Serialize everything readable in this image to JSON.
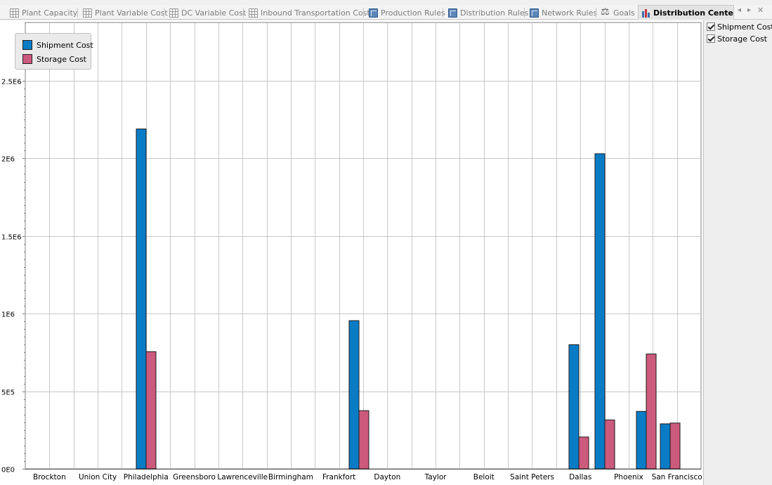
{
  "tabs": [
    {
      "label": "Plant Capacity",
      "icon": "table-icon"
    },
    {
      "label": "Plant Variable Cost",
      "icon": "table-icon"
    },
    {
      "label": "DC Variable Cost",
      "icon": "table-icon"
    },
    {
      "label": "Inbound Transportation Cost",
      "icon": "table-icon"
    },
    {
      "label": "Production Rules",
      "icon": "rules-book-icon"
    },
    {
      "label": "Distribution Rules",
      "icon": "rules-book-icon"
    },
    {
      "label": "Network Rules",
      "icon": "rules-book-icon"
    },
    {
      "label": "Goals",
      "icon": "scale-icon"
    },
    {
      "label": "Distribution Center C",
      "icon": "bar-chart-icon",
      "active": true
    }
  ],
  "nav": {
    "prev": "◂",
    "next": "▸",
    "close": "✕"
  },
  "legend": [
    {
      "label": "Shipment Cost",
      "color": "#0a7cc6"
    },
    {
      "label": "Storage Cost",
      "color": "#cc5a7c"
    }
  ],
  "toggles": [
    {
      "label": "Shipment Cost",
      "checked": true
    },
    {
      "label": "Storage Cost",
      "checked": true
    }
  ],
  "chart_data": {
    "type": "bar",
    "categories": [
      "Brockton",
      "Union City",
      "Philadelphia",
      "Greensboro",
      "Lawrenceville",
      "Birmingham",
      "Frankfort",
      "Dayton",
      "Taylor",
      "Beloit",
      "Saint Peters",
      "Dallas",
      "Phoenix",
      "San Francisco"
    ],
    "series": [
      {
        "name": "Shipment Cost",
        "color": "#0a7cc6",
        "values": [
          0,
          0,
          2190000,
          0,
          0,
          0,
          955000,
          0,
          0,
          0,
          0,
          800000,
          2030000,
          370000
        ]
      },
      {
        "name": "Storage Cost",
        "color": "#cc5a7c",
        "values": [
          0,
          0,
          755000,
          0,
          0,
          0,
          375000,
          0,
          0,
          0,
          0,
          205000,
          315000,
          740000
        ]
      }
    ],
    "extra_bars": [
      {
        "category": "San Francisco",
        "series": "Shipment Cost",
        "value": 290000
      },
      {
        "category": "San Francisco",
        "series": "Storage Cost",
        "value": 295000
      }
    ],
    "y_ticks": [
      "0E0",
      "5E5",
      "1E6",
      "1.5E6",
      "2E6",
      "2.5E6"
    ],
    "y_tick_values": [
      0,
      500000,
      1000000,
      1500000,
      2000000,
      2500000
    ],
    "ylim": [
      0,
      2500000
    ],
    "grid": true,
    "legend_position": "top-left"
  }
}
